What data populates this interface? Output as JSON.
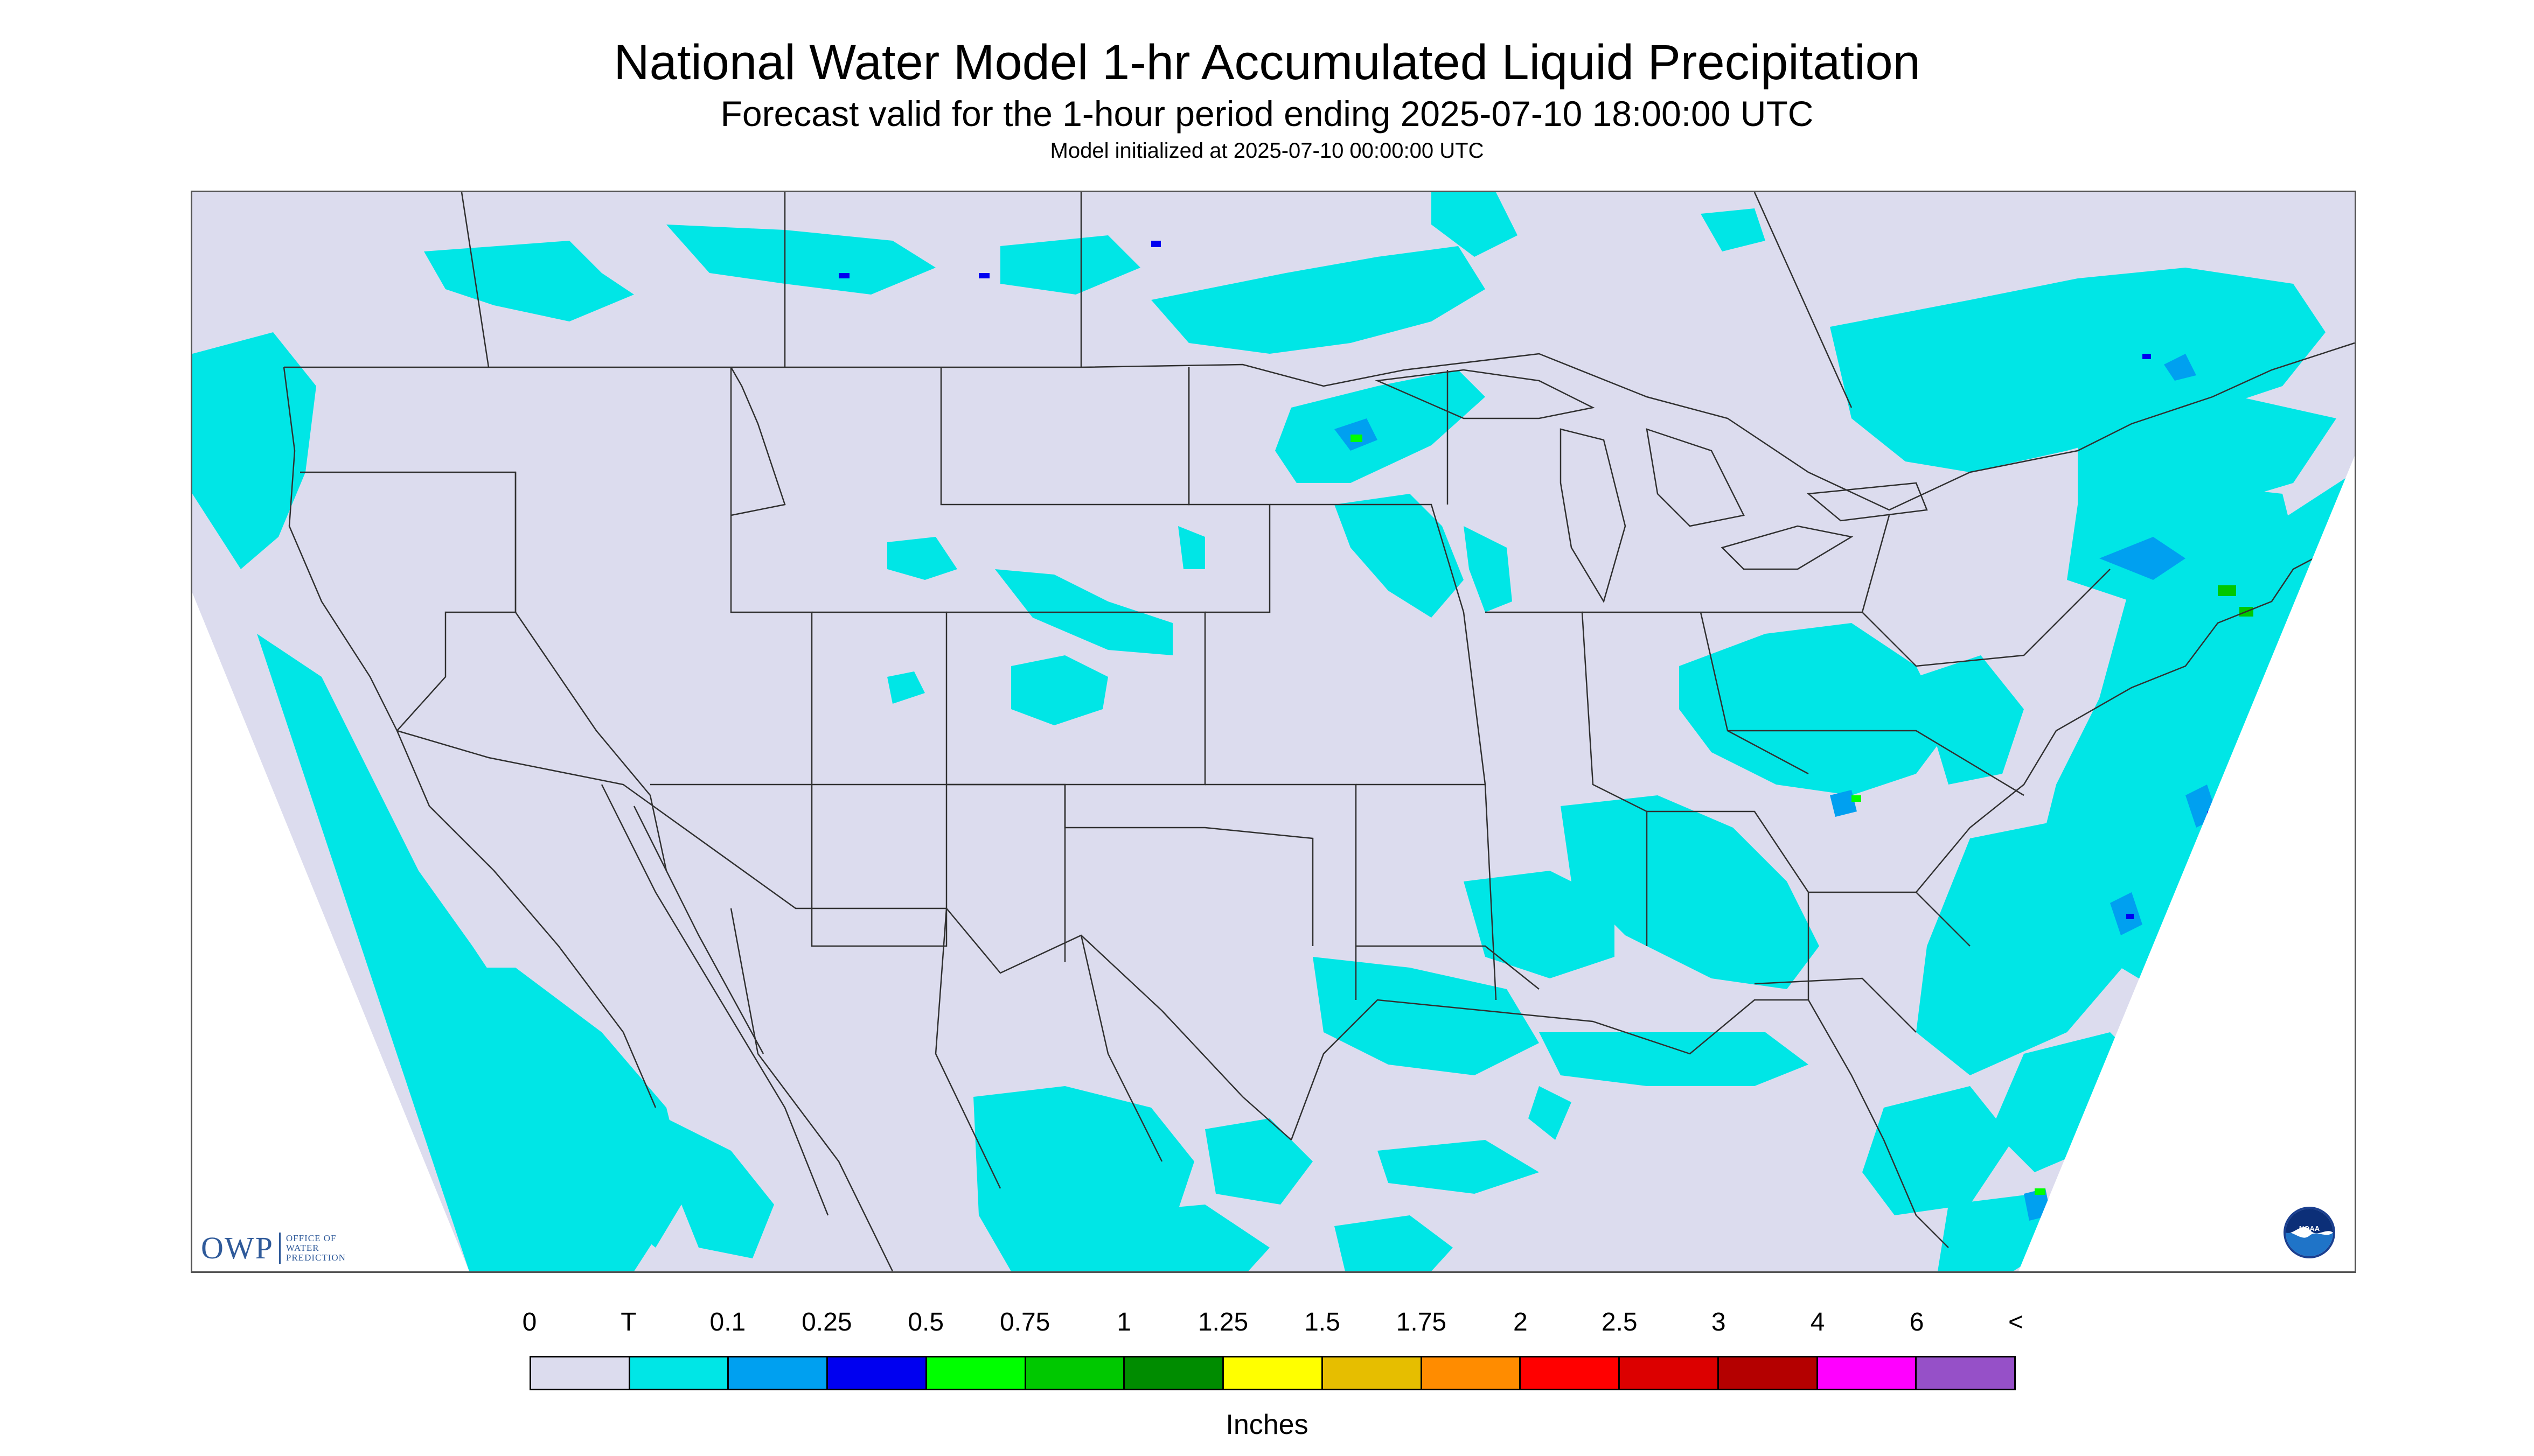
{
  "header": {
    "title": "National Water Model 1-hr Accumulated Liquid Precipitation",
    "subtitle": "Forecast valid for the 1-hour period ending 2025-07-10 18:00:00 UTC",
    "init": "Model initialized at 2025-07-10 00:00:00 UTC"
  },
  "logos": {
    "owp_mark": "OWP",
    "owp_line1": "OFFICE OF",
    "owp_line2": "WATER",
    "owp_line3": "PREDICTION",
    "noaa": "NOAA"
  },
  "map": {
    "background_color": "#dcdcee",
    "border_color": "#555555",
    "outside_color": "#ffffff"
  },
  "legend": {
    "labels": [
      "0",
      "T",
      "0.1",
      "0.25",
      "0.5",
      "0.75",
      "1",
      "1.25",
      "1.5",
      "1.75",
      "2",
      "2.5",
      "3",
      "4",
      "6",
      "<"
    ],
    "colors": [
      "#dcdcee",
      "#00e6e6",
      "#00a0f0",
      "#0000f0",
      "#00ff00",
      "#00c800",
      "#008c00",
      "#ffff00",
      "#e6be00",
      "#ff8c00",
      "#ff0000",
      "#dc0000",
      "#b40000",
      "#ff00ff",
      "#9650c8"
    ],
    "units": "Inches"
  }
}
